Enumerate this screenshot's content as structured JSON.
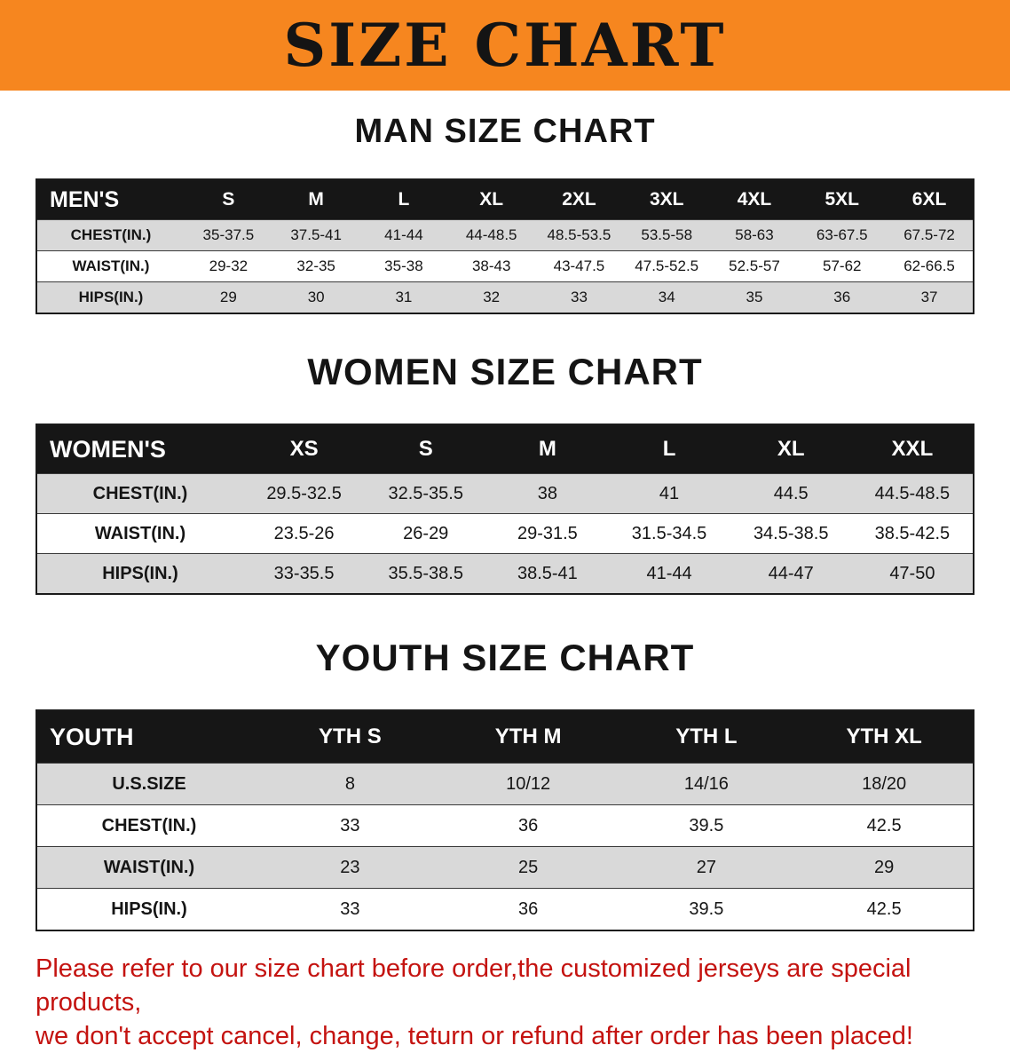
{
  "banner": {
    "title": "SIZE CHART"
  },
  "men": {
    "heading": "MAN SIZE CHART",
    "header_label": "MEN'S",
    "columns": [
      "S",
      "M",
      "L",
      "XL",
      "2XL",
      "3XL",
      "4XL",
      "5XL",
      "6XL"
    ],
    "rows": [
      {
        "label": "CHEST(IN.)",
        "values": [
          "35-37.5",
          "37.5-41",
          "41-44",
          "44-48.5",
          "48.5-53.5",
          "53.5-58",
          "58-63",
          "63-67.5",
          "67.5-72"
        ]
      },
      {
        "label": "WAIST(IN.)",
        "values": [
          "29-32",
          "32-35",
          "35-38",
          "38-43",
          "43-47.5",
          "47.5-52.5",
          "52.5-57",
          "57-62",
          "62-66.5"
        ]
      },
      {
        "label": "HIPS(IN.)",
        "values": [
          "29",
          "30",
          "31",
          "32",
          "33",
          "34",
          "35",
          "36",
          "37"
        ]
      }
    ]
  },
  "women": {
    "heading": "WOMEN SIZE CHART",
    "header_label": "WOMEN'S",
    "columns": [
      "XS",
      "S",
      "M",
      "L",
      "XL",
      "XXL"
    ],
    "rows": [
      {
        "label": "CHEST(IN.)",
        "values": [
          "29.5-32.5",
          "32.5-35.5",
          "38",
          "41",
          "44.5",
          "44.5-48.5"
        ]
      },
      {
        "label": "WAIST(IN.)",
        "values": [
          "23.5-26",
          "26-29",
          "29-31.5",
          "31.5-34.5",
          "34.5-38.5",
          "38.5-42.5"
        ]
      },
      {
        "label": "HIPS(IN.)",
        "values": [
          "33-35.5",
          "35.5-38.5",
          "38.5-41",
          "41-44",
          "44-47",
          "47-50"
        ]
      }
    ]
  },
  "youth": {
    "heading": "YOUTH SIZE CHART",
    "header_label": "YOUTH",
    "columns": [
      "YTH S",
      "YTH M",
      "YTH L",
      "YTH XL"
    ],
    "rows": [
      {
        "label": "U.S.SIZE",
        "values": [
          "8",
          "10/12",
          "14/16",
          "18/20"
        ]
      },
      {
        "label": "CHEST(IN.)",
        "values": [
          "33",
          "36",
          "39.5",
          "42.5"
        ]
      },
      {
        "label": "WAIST(IN.)",
        "values": [
          "23",
          "25",
          "27",
          "29"
        ]
      },
      {
        "label": "HIPS(IN.)",
        "values": [
          "33",
          "36",
          "39.5",
          "42.5"
        ]
      }
    ]
  },
  "disclaimer": {
    "line1": "Please refer to our size chart before order,the customized jerseys are special products,",
    "line2": "we don't accept cancel, change, teturn or refund after order has been placed!"
  },
  "colors": {
    "banner_orange": "#f6861f",
    "header_black": "#161616",
    "stripe_gray": "#d9d9d9",
    "disclaimer_red": "#c41310"
  }
}
